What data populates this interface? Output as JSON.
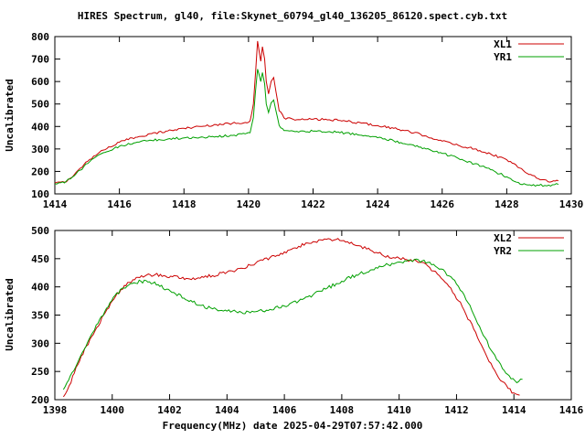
{
  "title": "HIRES Spectrum, gl40, file:Skynet_60794_gl40_136205_86120.spect.cyb.txt",
  "xlabel": "Frequency(MHz) date 2025-04-29T07:57:42.000",
  "background_color": "#ffffff",
  "axis_color": "#000000",
  "chart_data": [
    {
      "type": "line",
      "ylabel": "Uncalibrated",
      "xlim": [
        1414,
        1430
      ],
      "ylim": [
        100,
        800
      ],
      "xticks": [
        1414,
        1416,
        1418,
        1420,
        1422,
        1424,
        1426,
        1428,
        1430
      ],
      "yticks": [
        100,
        200,
        300,
        400,
        500,
        600,
        700,
        800
      ],
      "legend_position": "top-right",
      "grid": false,
      "noise": 5,
      "series": [
        {
          "name": "XL1",
          "color": "#cc0000",
          "points": [
            [
              1414.0,
              148
            ],
            [
              1414.3,
              152
            ],
            [
              1414.6,
              185
            ],
            [
              1414.9,
              230
            ],
            [
              1415.2,
              268
            ],
            [
              1415.5,
              295
            ],
            [
              1416.0,
              330
            ],
            [
              1416.5,
              352
            ],
            [
              1417.0,
              368
            ],
            [
              1417.5,
              380
            ],
            [
              1418.0,
              392
            ],
            [
              1418.5,
              400
            ],
            [
              1419.0,
              408
            ],
            [
              1419.5,
              414
            ],
            [
              1419.9,
              418
            ],
            [
              1420.05,
              425
            ],
            [
              1420.15,
              500
            ],
            [
              1420.22,
              640
            ],
            [
              1420.28,
              780
            ],
            [
              1420.33,
              735
            ],
            [
              1420.38,
              690
            ],
            [
              1420.43,
              755
            ],
            [
              1420.5,
              700
            ],
            [
              1420.55,
              600
            ],
            [
              1420.62,
              545
            ],
            [
              1420.7,
              600
            ],
            [
              1420.78,
              618
            ],
            [
              1420.85,
              555
            ],
            [
              1420.95,
              470
            ],
            [
              1421.1,
              438
            ],
            [
              1421.5,
              430
            ],
            [
              1422.0,
              432
            ],
            [
              1422.5,
              430
            ],
            [
              1423.0,
              424
            ],
            [
              1423.5,
              415
            ],
            [
              1424.0,
              404
            ],
            [
              1424.5,
              392
            ],
            [
              1425.0,
              376
            ],
            [
              1425.5,
              358
            ],
            [
              1426.0,
              335
            ],
            [
              1426.5,
              316
            ],
            [
              1427.0,
              300
            ],
            [
              1427.5,
              278
            ],
            [
              1428.0,
              252
            ],
            [
              1428.4,
              215
            ],
            [
              1428.8,
              182
            ],
            [
              1429.1,
              163
            ],
            [
              1429.4,
              155
            ],
            [
              1429.6,
              158
            ]
          ]
        },
        {
          "name": "YR1",
          "color": "#00a000",
          "points": [
            [
              1414.0,
              145
            ],
            [
              1414.3,
              149
            ],
            [
              1414.6,
              180
            ],
            [
              1414.9,
              222
            ],
            [
              1415.2,
              258
            ],
            [
              1415.5,
              283
            ],
            [
              1416.0,
              312
            ],
            [
              1416.5,
              328
            ],
            [
              1417.0,
              338
            ],
            [
              1417.5,
              344
            ],
            [
              1418.0,
              349
            ],
            [
              1418.5,
              352
            ],
            [
              1419.0,
              355
            ],
            [
              1419.5,
              360
            ],
            [
              1419.9,
              367
            ],
            [
              1420.05,
              372
            ],
            [
              1420.15,
              440
            ],
            [
              1420.22,
              560
            ],
            [
              1420.28,
              655
            ],
            [
              1420.33,
              630
            ],
            [
              1420.38,
              600
            ],
            [
              1420.43,
              640
            ],
            [
              1420.5,
              590
            ],
            [
              1420.55,
              500
            ],
            [
              1420.62,
              462
            ],
            [
              1420.7,
              505
            ],
            [
              1420.78,
              518
            ],
            [
              1420.85,
              470
            ],
            [
              1420.95,
              405
            ],
            [
              1421.1,
              382
            ],
            [
              1421.5,
              378
            ],
            [
              1422.0,
              379
            ],
            [
              1422.5,
              377
            ],
            [
              1423.0,
              371
            ],
            [
              1423.5,
              361
            ],
            [
              1424.0,
              350
            ],
            [
              1424.5,
              336
            ],
            [
              1425.0,
              320
            ],
            [
              1425.5,
              300
            ],
            [
              1426.0,
              280
            ],
            [
              1426.5,
              258
            ],
            [
              1427.0,
              234
            ],
            [
              1427.5,
              208
            ],
            [
              1428.0,
              176
            ],
            [
              1428.3,
              152
            ],
            [
              1428.6,
              141
            ],
            [
              1429.0,
              138
            ],
            [
              1429.3,
              139
            ],
            [
              1429.6,
              142
            ]
          ]
        }
      ]
    },
    {
      "type": "line",
      "ylabel": "Uncalibrated",
      "xlim": [
        1398,
        1416
      ],
      "ylim": [
        200,
        500
      ],
      "xticks": [
        1398,
        1400,
        1402,
        1404,
        1406,
        1408,
        1410,
        1412,
        1414,
        1416
      ],
      "yticks": [
        200,
        250,
        300,
        350,
        400,
        450,
        500
      ],
      "legend_position": "top-right",
      "grid": false,
      "noise": 3,
      "series": [
        {
          "name": "XL2",
          "color": "#cc0000",
          "points": [
            [
              1398.3,
              205
            ],
            [
              1398.5,
              225
            ],
            [
              1398.8,
              262
            ],
            [
              1399.1,
              295
            ],
            [
              1399.4,
              322
            ],
            [
              1399.7,
              350
            ],
            [
              1400.0,
              375
            ],
            [
              1400.3,
              395
            ],
            [
              1400.6,
              408
            ],
            [
              1400.9,
              417
            ],
            [
              1401.2,
              421
            ],
            [
              1401.5,
              422
            ],
            [
              1401.8,
              420
            ],
            [
              1402.1,
              418
            ],
            [
              1402.4,
              415
            ],
            [
              1402.7,
              414
            ],
            [
              1403.0,
              416
            ],
            [
              1403.5,
              420
            ],
            [
              1404.0,
              426
            ],
            [
              1404.5,
              433
            ],
            [
              1405.0,
              442
            ],
            [
              1405.5,
              452
            ],
            [
              1406.0,
              462
            ],
            [
              1406.5,
              472
            ],
            [
              1407.0,
              480
            ],
            [
              1407.4,
              485
            ],
            [
              1407.8,
              484
            ],
            [
              1408.2,
              480
            ],
            [
              1408.6,
              473
            ],
            [
              1409.0,
              465
            ],
            [
              1409.4,
              457
            ],
            [
              1409.8,
              452
            ],
            [
              1410.2,
              449
            ],
            [
              1410.6,
              446
            ],
            [
              1411.0,
              437
            ],
            [
              1411.4,
              420
            ],
            [
              1411.8,
              398
            ],
            [
              1412.2,
              365
            ],
            [
              1412.6,
              325
            ],
            [
              1413.0,
              283
            ],
            [
              1413.4,
              245
            ],
            [
              1413.8,
              220
            ],
            [
              1414.0,
              212
            ],
            [
              1414.2,
              208
            ]
          ]
        },
        {
          "name": "YR2",
          "color": "#00a000",
          "points": [
            [
              1398.3,
              218
            ],
            [
              1398.6,
              248
            ],
            [
              1398.9,
              278
            ],
            [
              1399.2,
              308
            ],
            [
              1399.5,
              335
            ],
            [
              1399.8,
              362
            ],
            [
              1400.1,
              385
            ],
            [
              1400.4,
              398
            ],
            [
              1400.7,
              406
            ],
            [
              1401.0,
              410
            ],
            [
              1401.3,
              409
            ],
            [
              1401.6,
              404
            ],
            [
              1401.9,
              396
            ],
            [
              1402.2,
              388
            ],
            [
              1402.5,
              380
            ],
            [
              1402.8,
              373
            ],
            [
              1403.1,
              367
            ],
            [
              1403.5,
              361
            ],
            [
              1404.0,
              357
            ],
            [
              1404.5,
              355
            ],
            [
              1405.0,
              356
            ],
            [
              1405.5,
              360
            ],
            [
              1406.0,
              366
            ],
            [
              1406.5,
              375
            ],
            [
              1407.0,
              386
            ],
            [
              1407.5,
              398
            ],
            [
              1408.0,
              410
            ],
            [
              1408.5,
              421
            ],
            [
              1409.0,
              430
            ],
            [
              1409.5,
              438
            ],
            [
              1410.0,
              444
            ],
            [
              1410.4,
              447
            ],
            [
              1410.8,
              446
            ],
            [
              1411.2,
              440
            ],
            [
              1411.6,
              427
            ],
            [
              1412.0,
              405
            ],
            [
              1412.4,
              372
            ],
            [
              1412.8,
              330
            ],
            [
              1413.2,
              288
            ],
            [
              1413.6,
              255
            ],
            [
              1413.9,
              237
            ],
            [
              1414.1,
              230
            ],
            [
              1414.3,
              236
            ]
          ]
        }
      ]
    }
  ]
}
